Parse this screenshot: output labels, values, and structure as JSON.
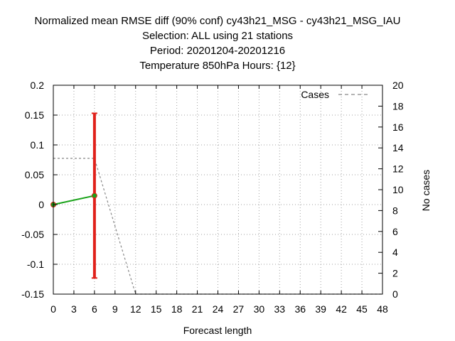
{
  "chart_data": {
    "type": "line",
    "title_lines": [
      "Normalized mean RMSE diff (90% conf) cy43h21_MSG - cy43h21_MSG_IAU",
      "Selection: ALL using    21 stations",
      "Period: 20201204-20201216",
      "Temperature 850hPa   Hours: {12}"
    ],
    "xlabel": "Forecast length",
    "ylabel": "",
    "y2label": "No cases",
    "xlim": [
      0,
      48
    ],
    "ylim": [
      -0.15,
      0.2
    ],
    "y2lim": [
      0,
      20
    ],
    "xticks": [
      0,
      3,
      6,
      9,
      12,
      15,
      18,
      21,
      24,
      27,
      30,
      33,
      36,
      39,
      42,
      45,
      48
    ],
    "yticks": [
      "-0.15",
      "-0.1",
      "-0.05",
      "0",
      "0.05",
      "0.1",
      "0.15",
      "0.2"
    ],
    "y2ticks": [
      0,
      2,
      4,
      6,
      8,
      10,
      12,
      14,
      16,
      18,
      20
    ],
    "grid": true,
    "series": [
      {
        "name": "",
        "color": "#1aa31a",
        "x": [
          0,
          6
        ],
        "y": [
          0.0,
          0.015
        ],
        "ci_low": [
          0.0,
          -0.123
        ],
        "ci_high": [
          0.0,
          0.153
        ],
        "ci_color": "#e0201a"
      },
      {
        "name": "Cases",
        "color": "#888888",
        "axis": "right",
        "dashed": true,
        "x": [
          0,
          6,
          12,
          48
        ],
        "y": [
          13,
          13,
          0,
          0
        ]
      }
    ],
    "legend": {
      "placement": "top-right",
      "entries": [
        "Cases"
      ]
    }
  }
}
